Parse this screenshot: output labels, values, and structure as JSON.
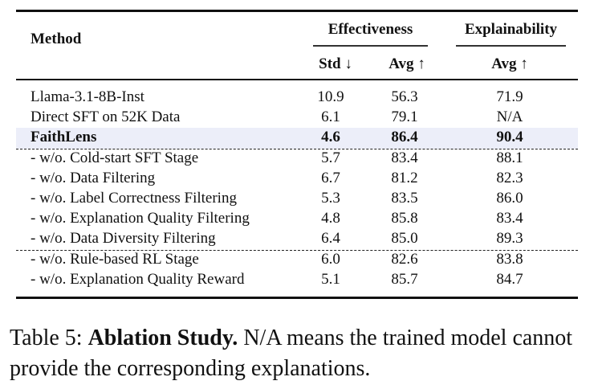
{
  "table": {
    "header": {
      "method": "Method",
      "group_effectiveness": "Effectiveness",
      "group_explainability": "Explainability",
      "sub_std": "Std ↓",
      "sub_avg": "Avg ↑",
      "sub_exp_avg": "Avg ↑"
    },
    "rows": [
      {
        "method": "Llama-3.1-8B-Inst",
        "std": "10.9",
        "avg": "56.3",
        "exp_avg": "71.9"
      },
      {
        "method": "Direct SFT on 52K Data",
        "std": "6.1",
        "avg": "79.1",
        "exp_avg": "N/A"
      },
      {
        "method": "FaithLens",
        "std": "4.6",
        "avg": "86.4",
        "exp_avg": "90.4"
      },
      {
        "method": "- w/o. Cold-start SFT Stage",
        "std": "5.7",
        "avg": "83.4",
        "exp_avg": "88.1"
      },
      {
        "method": "- w/o. Data Filtering",
        "std": "6.7",
        "avg": "81.2",
        "exp_avg": "82.3"
      },
      {
        "method": "- w/o. Label Correctness Filtering",
        "std": "5.3",
        "avg": "83.5",
        "exp_avg": "86.0"
      },
      {
        "method": "- w/o. Explanation Quality Filtering",
        "std": "4.8",
        "avg": "85.8",
        "exp_avg": "83.4"
      },
      {
        "method": "- w/o. Data Diversity Filtering",
        "std": "6.4",
        "avg": "85.0",
        "exp_avg": "89.3"
      },
      {
        "method": "- w/o. Rule-based RL Stage",
        "std": "6.0",
        "avg": "82.6",
        "exp_avg": "83.8"
      },
      {
        "method": "- w/o. Explanation Quality Reward",
        "std": "5.1",
        "avg": "85.7",
        "exp_avg": "84.7"
      }
    ],
    "highlight_color": "#eceef9"
  },
  "caption": {
    "label": "Table 5:",
    "title": "Ablation Study.",
    "text": "N/A means the trained model cannot provide the corresponding explanations."
  }
}
